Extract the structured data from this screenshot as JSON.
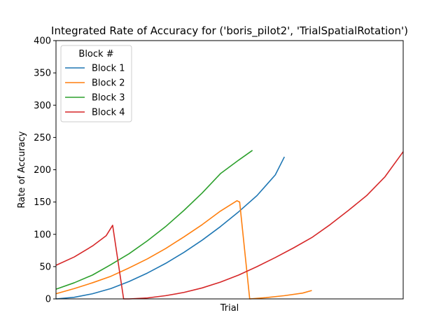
{
  "chart_data": {
    "type": "line",
    "title": "Integrated Rate of Accuracy for ('boris_pilot2', 'TrialSpatialRotation')",
    "xlabel": "Trial",
    "ylabel": "Rate of Accuracy",
    "xlim": [
      0,
      38
    ],
    "ylim": [
      0,
      400
    ],
    "yticks": [
      0,
      50,
      100,
      150,
      200,
      250,
      300,
      350,
      400
    ],
    "grid": false,
    "legend": {
      "title": "Block #",
      "placement": "top-left"
    },
    "series": [
      {
        "name": "Block 1",
        "color": "#1f77b4",
        "x": [
          0,
          2,
          4,
          6,
          8,
          10,
          12,
          14,
          16,
          18,
          20,
          22,
          24,
          25
        ],
        "y": [
          0,
          2.5,
          8,
          16,
          27,
          40,
          55,
          72,
          91,
          112,
          135,
          160,
          192,
          220
        ]
      },
      {
        "name": "Block 2",
        "color": "#ff7f0e",
        "x": [
          0,
          2,
          4,
          6,
          8,
          10,
          12,
          14,
          16,
          18,
          19.8,
          20.1,
          21.2,
          23,
          25,
          27,
          28
        ],
        "y": [
          8,
          16,
          25,
          35,
          48,
          62,
          78,
          96,
          115,
          136,
          152,
          150,
          0,
          2,
          5,
          9,
          13
        ]
      },
      {
        "name": "Block 3",
        "color": "#2ca02c",
        "x": [
          0,
          2,
          4,
          6,
          8,
          10,
          12,
          14,
          16,
          18,
          20,
          21.5
        ],
        "y": [
          15,
          25,
          37,
          53,
          70,
          90,
          112,
          137,
          164,
          194,
          215,
          230
        ]
      },
      {
        "name": "Block 4",
        "color": "#d62728",
        "x": [
          0,
          2,
          4,
          5.5,
          6.2,
          7.4,
          8,
          10,
          12,
          14,
          16,
          18,
          20,
          22,
          24,
          26,
          28,
          30,
          32,
          34,
          36,
          38
        ],
        "y": [
          52,
          65,
          82,
          98,
          114,
          0,
          0,
          1.5,
          5,
          10,
          17,
          26,
          37,
          50,
          64,
          79,
          95,
          115,
          137,
          160,
          189,
          228
        ]
      }
    ]
  }
}
